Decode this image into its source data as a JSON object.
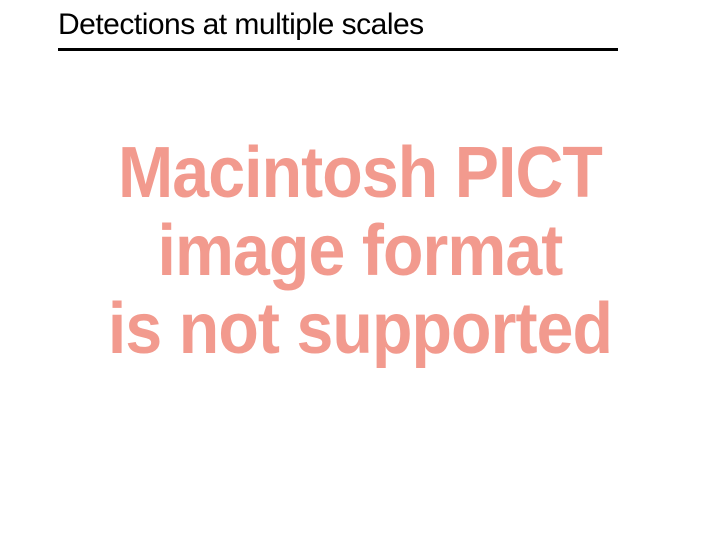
{
  "slide": {
    "title": "Detections at multiple scales",
    "title_fontsize": 30,
    "title_color": "#000000",
    "rule_color": "#000000",
    "rule_thickness": 3,
    "background_color": "#ffffff"
  },
  "pict_error": {
    "line1": "Macintosh PICT",
    "line2": "image format",
    "line3": "is not supported",
    "text_color": "#f29a8e",
    "font_weight": 900,
    "font_size": 72,
    "font_family": "Arial"
  }
}
